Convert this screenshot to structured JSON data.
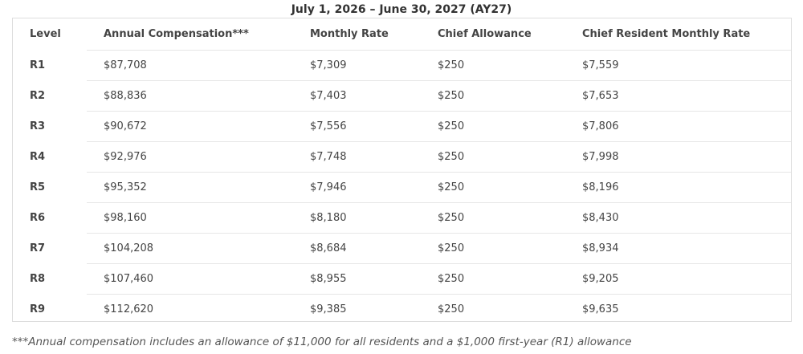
{
  "caption": "July 1, 2026 – June 30, 2027 (AY27)",
  "table": {
    "headers": {
      "level": "Level",
      "annual": "Annual Compensation***",
      "monthly": "Monthly Rate",
      "chief_allowance": "Chief Allowance",
      "chief_monthly": "Chief Resident Monthly Rate"
    },
    "rows": [
      {
        "level": "R1",
        "annual": "$87,708",
        "monthly": "$7,309",
        "chief_allowance": "$250",
        "chief_monthly": "$7,559"
      },
      {
        "level": "R2",
        "annual": "$88,836",
        "monthly": "$7,403",
        "chief_allowance": "$250",
        "chief_monthly": "$7,653"
      },
      {
        "level": "R3",
        "annual": "$90,672",
        "monthly": "$7,556",
        "chief_allowance": "$250",
        "chief_monthly": "$7,806"
      },
      {
        "level": "R4",
        "annual": "$92,976",
        "monthly": "$7,748",
        "chief_allowance": "$250",
        "chief_monthly": "$7,998"
      },
      {
        "level": "R5",
        "annual": "$95,352",
        "monthly": "$7,946",
        "chief_allowance": "$250",
        "chief_monthly": "$8,196"
      },
      {
        "level": "R6",
        "annual": "$98,160",
        "monthly": "$8,180",
        "chief_allowance": "$250",
        "chief_monthly": "$8,430"
      },
      {
        "level": "R7",
        "annual": "$104,208",
        "monthly": "$8,684",
        "chief_allowance": "$250",
        "chief_monthly": "$8,934"
      },
      {
        "level": "R8",
        "annual": "$107,460",
        "monthly": "$8,955",
        "chief_allowance": "$250",
        "chief_monthly": "$9,205"
      },
      {
        "level": "R9",
        "annual": "$112,620",
        "monthly": "$9,385",
        "chief_allowance": "$250",
        "chief_monthly": "$9,635"
      }
    ]
  },
  "footnote": "***Annual compensation includes an allowance of $11,000 for all residents and a $1,000 first-year (R1) allowance",
  "colors": {
    "text": "#333333",
    "border": "#dddddd",
    "row_divider": "#e6e6e6"
  }
}
